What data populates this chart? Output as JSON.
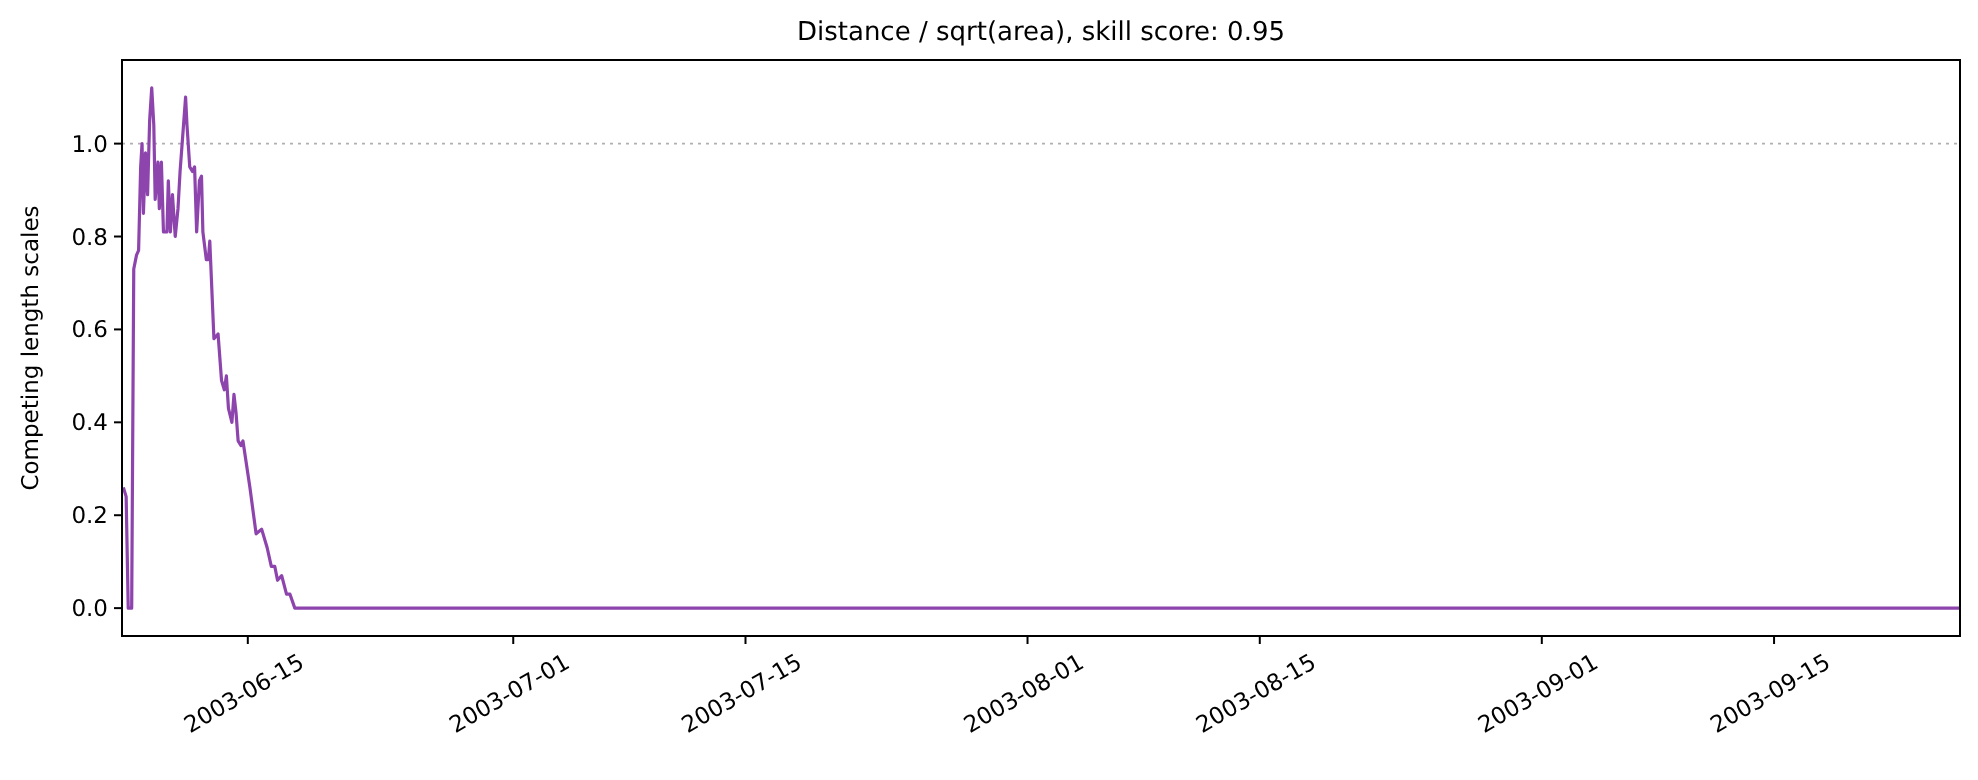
{
  "chart_data": {
    "type": "line",
    "title": "Distance / sqrt(area), skill score: 0.95",
    "ylabel": "Competing length scales",
    "x": [
      "2003-06-07T12:00",
      "2003-06-07T16:00",
      "2003-06-07T19:00",
      "2003-06-08T00:00",
      "2003-06-08T03:00",
      "2003-06-08T07:00",
      "2003-06-08T10:00",
      "2003-06-08T13:00",
      "2003-06-08T15:00",
      "2003-06-08T17:00",
      "2003-06-08T20:00",
      "2003-06-08T23:00",
      "2003-06-09T02:00",
      "2003-06-09T05:00",
      "2003-06-09T08:00",
      "2003-06-09T10:00",
      "2003-06-09T14:00",
      "2003-06-09T16:00",
      "2003-06-09T19:00",
      "2003-06-09T22:00",
      "2003-06-10T03:00",
      "2003-06-10T05:00",
      "2003-06-10T08:00",
      "2003-06-10T11:00",
      "2003-06-10T15:00",
      "2003-06-10T19:00",
      "2003-06-10T22:00",
      "2003-06-11T03:00",
      "2003-06-11T06:00",
      "2003-06-11T08:00",
      "2003-06-11T12:00",
      "2003-06-11T16:00",
      "2003-06-11T19:00",
      "2003-06-11T22:00",
      "2003-06-12T02:00",
      "2003-06-12T05:00",
      "2003-06-12T07:00",
      "2003-06-12T12:00",
      "2003-06-12T15:00",
      "2003-06-12T17:00",
      "2003-06-12T23:00",
      "2003-06-13T05:00",
      "2003-06-13T10:00",
      "2003-06-13T14:00",
      "2003-06-13T17:00",
      "2003-06-13T20:00",
      "2003-06-14T01:00",
      "2003-06-14T04:00",
      "2003-06-14T07:00",
      "2003-06-14T10:00",
      "2003-06-14T14:00",
      "2003-06-14T17:00",
      "2003-06-15T03:00",
      "2003-06-15T12:00",
      "2003-06-15T20:00",
      "2003-06-16T04:00",
      "2003-06-16T10:00",
      "2003-06-16T15:00",
      "2003-06-16T19:00",
      "2003-06-17T01:00",
      "2003-06-17T08:00",
      "2003-06-17T13:00",
      "2003-06-17T20:00",
      "2003-09-26T05:00"
    ],
    "series": [
      {
        "color": "#8e44ad",
        "values": [
          0.26,
          0.24,
          0,
          0,
          0.73,
          0.76,
          0.77,
          0.95,
          1.0,
          0.85,
          0.98,
          0.89,
          1.05,
          1.12,
          1.04,
          0.88,
          0.96,
          0.86,
          0.96,
          0.81,
          0.81,
          0.92,
          0.81,
          0.89,
          0.8,
          0.86,
          0.94,
          1.04,
          1.1,
          1.04,
          0.95,
          0.94,
          0.95,
          0.81,
          0.92,
          0.93,
          0.81,
          0.75,
          0.75,
          0.79,
          0.58,
          0.59,
          0.49,
          0.47,
          0.5,
          0.43,
          0.4,
          0.46,
          0.42,
          0.36,
          0.35,
          0.36,
          0.26,
          0.16,
          0.17,
          0.13,
          0.09,
          0.09,
          0.06,
          0.07,
          0.03,
          0.03,
          0,
          0
        ]
      }
    ],
    "xlim": [
      "2003-06-07T10:00",
      "2003-09-26T05:00"
    ],
    "xticks": [
      {
        "value": "2003-06-15",
        "label": "2003-06-15"
      },
      {
        "value": "2003-07-01",
        "label": "2003-07-01"
      },
      {
        "value": "2003-07-15",
        "label": "2003-07-15"
      },
      {
        "value": "2003-08-01",
        "label": "2003-08-01"
      },
      {
        "value": "2003-08-15",
        "label": "2003-08-15"
      },
      {
        "value": "2003-09-01",
        "label": "2003-09-01"
      },
      {
        "value": "2003-09-15",
        "label": "2003-09-15"
      }
    ],
    "ylim": [
      -0.06,
      1.18
    ],
    "yticks": [
      {
        "value": 0,
        "label": "0.0"
      },
      {
        "value": 0.2,
        "label": "0.2"
      },
      {
        "value": 0.4,
        "label": "0.4"
      },
      {
        "value": 0.6,
        "label": "0.6"
      },
      {
        "value": 0.8,
        "label": "0.8"
      },
      {
        "value": 1,
        "label": "1.0"
      }
    ],
    "ref_lines": [
      {
        "axis": "y",
        "value": 1,
        "color": "#b0b0b0",
        "line_style": "dotted"
      }
    ],
    "line_style": "solid",
    "marker": "none",
    "grid": false
  }
}
